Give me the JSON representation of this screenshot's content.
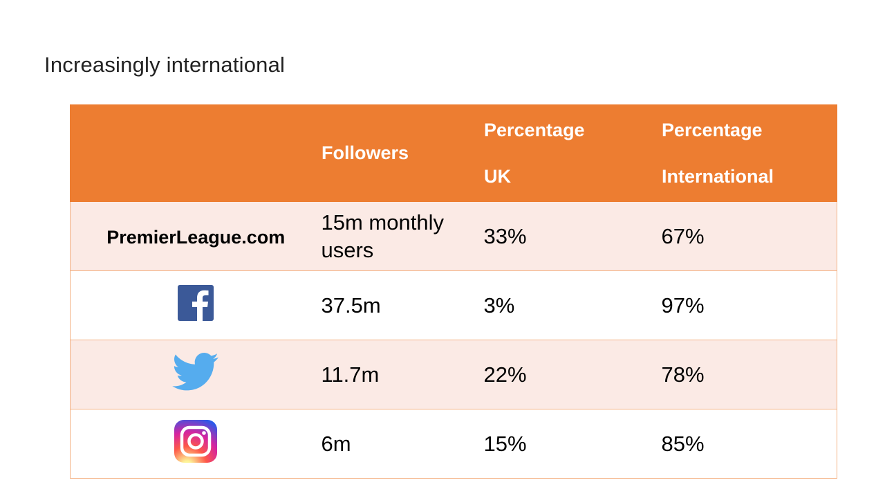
{
  "title": "Increasingly international",
  "table": {
    "headers": {
      "followers": "Followers",
      "uk_line1": "Percentage",
      "uk_line2": "UK",
      "intl_line1": "Percentage",
      "intl_line2": "International"
    },
    "rows": [
      {
        "platform": "PremierLeague.com",
        "icon": "text",
        "followers": "15m monthly users",
        "uk": "33%",
        "international": "67%"
      },
      {
        "platform": "Facebook",
        "icon": "facebook-icon",
        "followers": "37.5m",
        "uk": "3%",
        "international": "97%"
      },
      {
        "platform": "Twitter",
        "icon": "twitter-icon",
        "followers": "11.7m",
        "uk": "22%",
        "international": "78%"
      },
      {
        "platform": "Instagram",
        "icon": "instagram-icon",
        "followers": "6m",
        "uk": "15%",
        "international": "85%"
      }
    ]
  },
  "colors": {
    "header_bg": "#ED7D31",
    "row_tint": "#FBEAE5",
    "border": "#F4B183",
    "facebook": "#3B5998",
    "twitter": "#55ACEE"
  }
}
